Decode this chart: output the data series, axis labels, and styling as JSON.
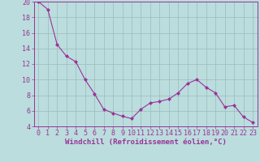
{
  "x": [
    0,
    1,
    2,
    3,
    4,
    5,
    6,
    7,
    8,
    9,
    10,
    11,
    12,
    13,
    14,
    15,
    16,
    17,
    18,
    19,
    20,
    21,
    22,
    23
  ],
  "y": [
    20,
    19,
    14.5,
    13,
    12.3,
    10,
    8.2,
    6.2,
    5.7,
    5.3,
    5.0,
    6.2,
    7.0,
    7.2,
    7.5,
    8.3,
    9.5,
    10.0,
    9.0,
    8.3,
    6.5,
    6.7,
    5.2,
    4.5
  ],
  "line_color": "#993399",
  "marker_color": "#993399",
  "bg_color": "#bbdddd",
  "grid_color": "#99bbbb",
  "axis_color": "#993399",
  "xlabel": "Windchill (Refroidissement éolien,°C)",
  "ylim": [
    4,
    20
  ],
  "xlim": [
    -0.5,
    23.5
  ],
  "yticks": [
    4,
    6,
    8,
    10,
    12,
    14,
    16,
    18,
    20
  ],
  "xticks": [
    0,
    1,
    2,
    3,
    4,
    5,
    6,
    7,
    8,
    9,
    10,
    11,
    12,
    13,
    14,
    15,
    16,
    17,
    18,
    19,
    20,
    21,
    22,
    23
  ],
  "xlabel_fontsize": 6.5,
  "tick_fontsize": 6.0,
  "tick_color": "#993399"
}
